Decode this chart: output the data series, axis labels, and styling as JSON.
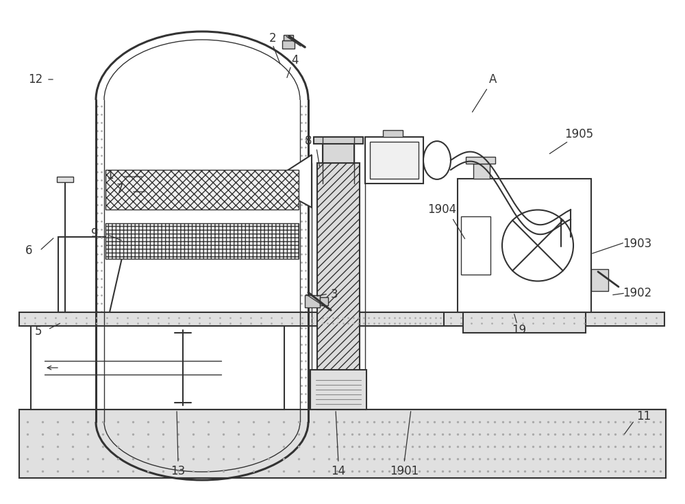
{
  "bg": "#ffffff",
  "lc": "#333333",
  "lc2": "#555555",
  "gray_light": "#e8e8e8",
  "gray_med": "#d0d0d0",
  "gray_dark": "#b0b0b0",
  "sand": "#c8c8c8",
  "fig_w": 10.0,
  "fig_h": 7.36,
  "dpi": 100
}
